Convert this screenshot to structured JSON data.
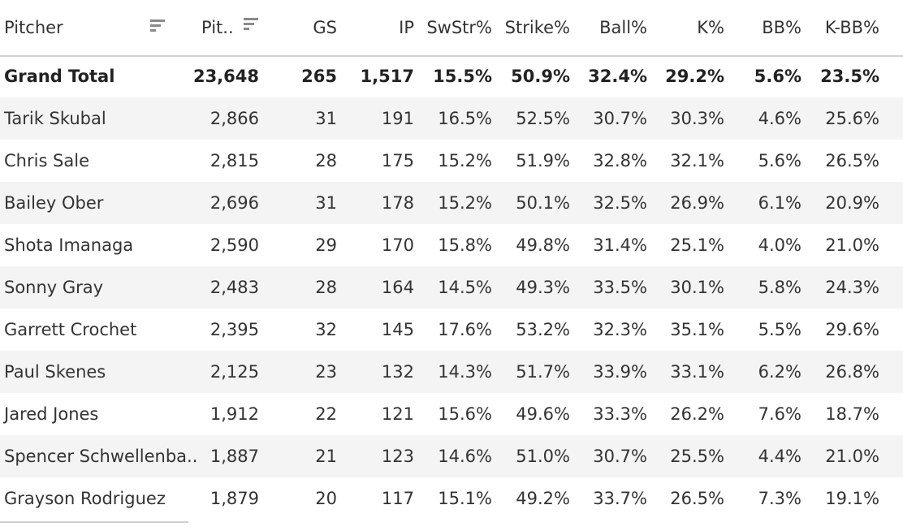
{
  "header": {
    "pitcher": "Pitcher",
    "pitches": "Pit..",
    "gs": "GS",
    "ip": "IP",
    "swstr": "SwStr%",
    "strike": "Strike%",
    "ball": "Ball%",
    "k": "K%",
    "bb": "BB%",
    "kbb": "K-BB%"
  },
  "icons": {
    "pitcher_sort": "sort-descending-icon",
    "pitches_sort": "sort-descending-icon"
  },
  "total": {
    "name": "Grand Total",
    "pitches": "23,648",
    "gs": "265",
    "ip": "1,517",
    "swstr": "15.5%",
    "strike": "50.9%",
    "ball": "32.4%",
    "k": "29.2%",
    "bb": "5.6%",
    "kbb": "23.5%"
  },
  "rows": [
    {
      "name": "Tarik Skubal",
      "pitches": "2,866",
      "gs": "31",
      "ip": "191",
      "swstr": "16.5%",
      "strike": "52.5%",
      "ball": "30.7%",
      "k": "30.3%",
      "bb": "4.6%",
      "kbb": "25.6%"
    },
    {
      "name": "Chris Sale",
      "pitches": "2,815",
      "gs": "28",
      "ip": "175",
      "swstr": "15.2%",
      "strike": "51.9%",
      "ball": "32.8%",
      "k": "32.1%",
      "bb": "5.6%",
      "kbb": "26.5%"
    },
    {
      "name": "Bailey Ober",
      "pitches": "2,696",
      "gs": "31",
      "ip": "178",
      "swstr": "15.2%",
      "strike": "50.1%",
      "ball": "32.5%",
      "k": "26.9%",
      "bb": "6.1%",
      "kbb": "20.9%"
    },
    {
      "name": "Shota Imanaga",
      "pitches": "2,590",
      "gs": "29",
      "ip": "170",
      "swstr": "15.8%",
      "strike": "49.8%",
      "ball": "31.4%",
      "k": "25.1%",
      "bb": "4.0%",
      "kbb": "21.0%"
    },
    {
      "name": "Sonny Gray",
      "pitches": "2,483",
      "gs": "28",
      "ip": "164",
      "swstr": "14.5%",
      "strike": "49.3%",
      "ball": "33.5%",
      "k": "30.1%",
      "bb": "5.8%",
      "kbb": "24.3%"
    },
    {
      "name": "Garrett Crochet",
      "pitches": "2,395",
      "gs": "32",
      "ip": "145",
      "swstr": "17.6%",
      "strike": "53.2%",
      "ball": "32.3%",
      "k": "35.1%",
      "bb": "5.5%",
      "kbb": "29.6%"
    },
    {
      "name": "Paul Skenes",
      "pitches": "2,125",
      "gs": "23",
      "ip": "132",
      "swstr": "14.3%",
      "strike": "51.7%",
      "ball": "33.9%",
      "k": "33.1%",
      "bb": "6.2%",
      "kbb": "26.8%"
    },
    {
      "name": "Jared Jones",
      "pitches": "1,912",
      "gs": "22",
      "ip": "121",
      "swstr": "15.6%",
      "strike": "49.6%",
      "ball": "33.3%",
      "k": "26.2%",
      "bb": "7.6%",
      "kbb": "18.7%"
    },
    {
      "name": "Spencer Schwellenba..",
      "pitches": "1,887",
      "gs": "21",
      "ip": "123",
      "swstr": "14.6%",
      "strike": "51.0%",
      "ball": "30.7%",
      "k": "25.5%",
      "bb": "4.4%",
      "kbb": "21.0%"
    },
    {
      "name": "Grayson Rodriguez",
      "pitches": "1,879",
      "gs": "20",
      "ip": "117",
      "swstr": "15.1%",
      "strike": "49.2%",
      "ball": "33.7%",
      "k": "26.5%",
      "bb": "7.3%",
      "kbb": "19.1%"
    }
  ]
}
